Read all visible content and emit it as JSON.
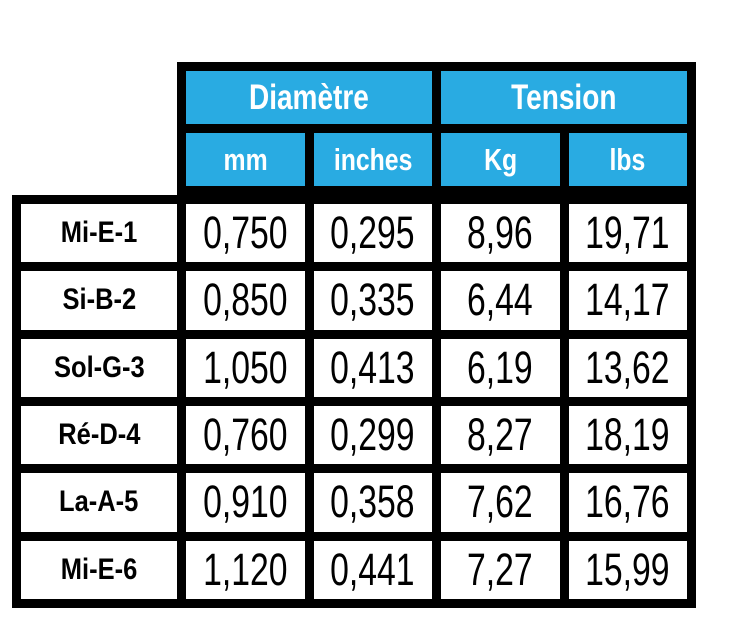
{
  "colors": {
    "header_bg": "#29ABE2",
    "header_text": "#FFFFFF",
    "border": "#000000",
    "cell_bg": "#FFFFFF",
    "body_text": "#000000"
  },
  "table": {
    "group_headers": [
      "Diamètre",
      "Tension"
    ],
    "sub_headers": [
      "mm",
      "inches",
      "Kg",
      "lbs"
    ],
    "rows": [
      {
        "label": "Mi-E-1",
        "mm": "0,750",
        "inches": "0,295",
        "kg": "8,96",
        "lbs": "19,71"
      },
      {
        "label": "Si-B-2",
        "mm": "0,850",
        "inches": "0,335",
        "kg": "6,44",
        "lbs": "14,17"
      },
      {
        "label": "Sol-G-3",
        "mm": "1,050",
        "inches": "0,413",
        "kg": "6,19",
        "lbs": "13,62"
      },
      {
        "label": "Ré-D-4",
        "mm": "0,760",
        "inches": "0,299",
        "kg": "8,27",
        "lbs": "18,19"
      },
      {
        "label": "La-A-5",
        "mm": "0,910",
        "inches": "0,358",
        "kg": "7,62",
        "lbs": "16,76"
      },
      {
        "label": "Mi-E-6",
        "mm": "1,120",
        "inches": "0,441",
        "kg": "7,27",
        "lbs": "15,99"
      }
    ]
  }
}
